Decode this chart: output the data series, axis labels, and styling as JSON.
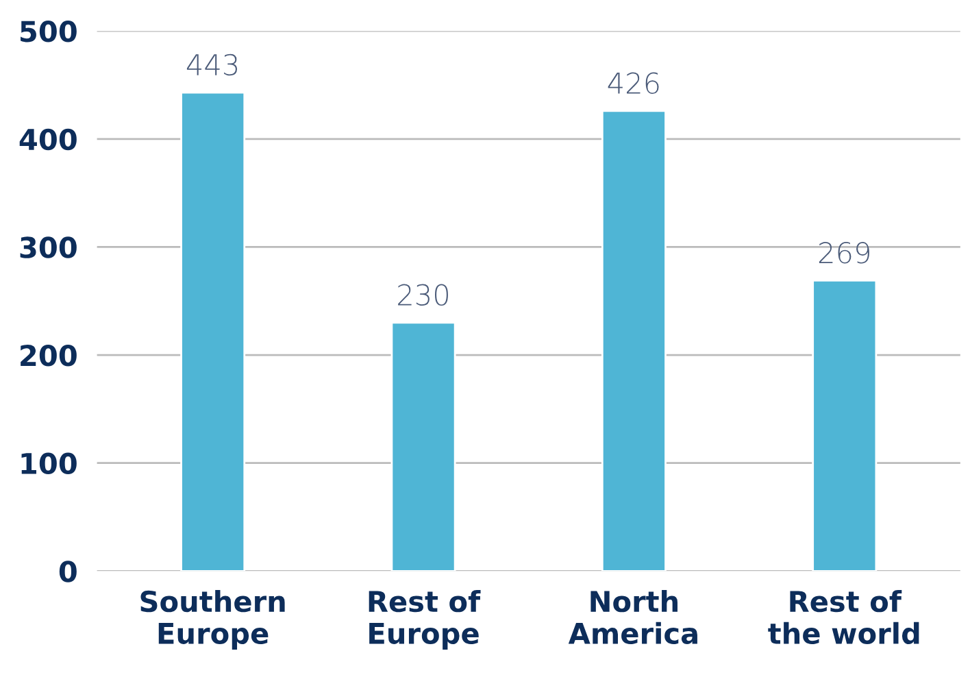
{
  "chart_data": {
    "type": "bar",
    "categories": [
      "Southern\nEurope",
      "Rest of\nEurope",
      "North\nAmerica",
      "Rest of\nthe world"
    ],
    "values": [
      443,
      230,
      426,
      269
    ],
    "color": "#4fb5d5",
    "ylim": [
      0,
      500
    ],
    "yticks": [
      0,
      100,
      200,
      300,
      400,
      500
    ],
    "grid": "y",
    "data_labels": true
  }
}
